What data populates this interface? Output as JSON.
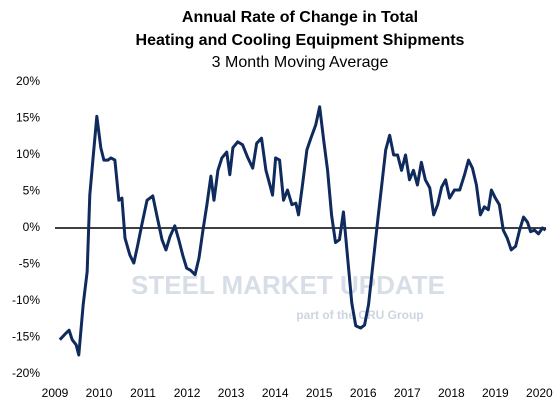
{
  "chart_data": {
    "type": "line",
    "title": [
      "Annual Rate of Change in Total",
      "Heating and Cooling Equipment Shipments"
    ],
    "subtitle": "3 Month Moving Average",
    "watermark": [
      "STEEL MARKET UPDATE",
      "part of the CRU Group"
    ],
    "x": [
      2009.11,
      2009.25,
      2009.32,
      2009.39,
      2009.48,
      2009.54,
      2009.64,
      2009.73,
      2009.79,
      2009.86,
      2009.95,
      2010.04,
      2010.11,
      2010.2,
      2010.27,
      2010.36,
      2010.45,
      2010.52,
      2010.59,
      2010.7,
      2010.79,
      2010.88,
      2010.97,
      2011.09,
      2011.22,
      2011.31,
      2011.43,
      2011.52,
      2011.61,
      2011.72,
      2011.81,
      2011.9,
      2011.99,
      2012.08,
      2012.18,
      2012.27,
      2012.36,
      2012.45,
      2012.54,
      2012.61,
      2012.7,
      2012.79,
      2012.9,
      2012.97,
      2013.04,
      2013.15,
      2013.26,
      2013.38,
      2013.49,
      2013.58,
      2013.69,
      2013.79,
      2013.88,
      2013.94,
      2014.01,
      2014.1,
      2014.19,
      2014.28,
      2014.38,
      2014.47,
      2014.53,
      2014.62,
      2014.72,
      2014.81,
      2014.92,
      2015.01,
      2015.1,
      2015.19,
      2015.28,
      2015.37,
      2015.46,
      2015.55,
      2015.65,
      2015.74,
      2015.83,
      2015.94,
      2016.03,
      2016.12,
      2016.21,
      2016.33,
      2016.42,
      2016.51,
      2016.6,
      2016.69,
      2016.78,
      2016.87,
      2016.96,
      2017.05,
      2017.14,
      2017.23,
      2017.32,
      2017.41,
      2017.51,
      2017.6,
      2017.69,
      2017.78,
      2017.87,
      2017.96,
      2018.07,
      2018.19,
      2018.3,
      2018.39,
      2018.48,
      2018.57,
      2018.66,
      2018.75,
      2018.84,
      2018.91,
      2019.0,
      2019.09,
      2019.18,
      2019.27,
      2019.36,
      2019.46,
      2019.55,
      2019.64,
      2019.73,
      2019.8,
      2019.89,
      2019.98,
      2020.07,
      2020.14
    ],
    "series": [
      {
        "name": "3 Month Moving Average",
        "color": "#0f2a5c",
        "values": [
          -15.3,
          -14.4,
          -14,
          -15.3,
          -16,
          -17.4,
          -10.5,
          -6,
          4.5,
          9.3,
          15.3,
          11,
          9.3,
          9.3,
          9.6,
          9.3,
          3.8,
          4.1,
          -1.4,
          -3.7,
          -4.8,
          -2.3,
          0.4,
          3.8,
          4.4,
          1.8,
          -1.6,
          -3,
          -1.2,
          0.3,
          -1.6,
          -3.7,
          -5.5,
          -5.8,
          -6.4,
          -4.1,
          -0.3,
          3.2,
          7.1,
          3.8,
          7.9,
          9.6,
          10.4,
          7.3,
          11,
          11.8,
          11.4,
          9.6,
          8.2,
          11.6,
          12.3,
          7.9,
          5.9,
          4.5,
          9.6,
          9.3,
          3.8,
          5.2,
          3.2,
          3.4,
          1.8,
          5.9,
          10.7,
          12.3,
          14.1,
          16.6,
          12.1,
          7.9,
          1.8,
          -2,
          -1.6,
          2.2,
          -4.4,
          -10.3,
          -13.4,
          -13.7,
          -13.3,
          -10.5,
          -5.5,
          1.1,
          5.9,
          10.7,
          12.7,
          10,
          10,
          7.9,
          10,
          6.6,
          7.9,
          5.9,
          9,
          6.6,
          5.5,
          1.8,
          3.2,
          5.6,
          6.6,
          4.1,
          5.2,
          5.2,
          7.3,
          9.3,
          8.2,
          5.9,
          1.8,
          2.9,
          2.5,
          5.2,
          4.1,
          3.2,
          -0.3,
          -1.4,
          -3,
          -2.5,
          -0.3,
          1.5,
          0.8,
          -0.5,
          -0.3,
          -0.8,
          0,
          -0.3
        ]
      }
    ],
    "xlim": [
      2009,
      2020.15
    ],
    "xticks": [
      2009,
      2010,
      2011,
      2012,
      2013,
      2014,
      2015,
      2016,
      2017,
      2018,
      2019,
      2020
    ],
    "ylim": [
      -20,
      20
    ],
    "yticks": [
      {
        "value": -20,
        "label": "-20%"
      },
      {
        "value": -15,
        "label": "-15%"
      },
      {
        "value": -10,
        "label": "-10%"
      },
      {
        "value": -5,
        "label": "-5%"
      },
      {
        "value": 0,
        "label": "0%"
      },
      {
        "value": 5,
        "label": "5%"
      },
      {
        "value": 10,
        "label": "10%"
      },
      {
        "value": 15,
        "label": "15%"
      },
      {
        "value": 20,
        "label": "20%"
      }
    ],
    "grid": false
  }
}
